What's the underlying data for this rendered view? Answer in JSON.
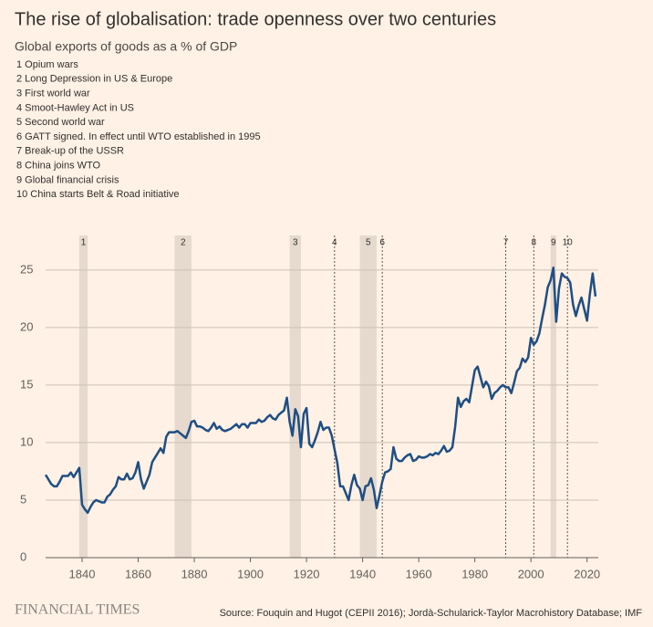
{
  "chart_data": {
    "type": "line",
    "title": "The rise of globalisation: trade openness over two centuries",
    "subtitle": "Global exports of goods as a % of GDP",
    "notes": [
      "1 Opium wars",
      "2 Long Depression in US & Europe",
      "3 First world war",
      "4 Smoot-Hawley Act in US",
      "5 Second world war",
      "6 GATT signed. In effect until WTO established in 1995",
      "7 Break-up of the USSR",
      "8 China joins WTO",
      "9 Global financial crisis",
      "10 China starts Belt & Road initiative"
    ],
    "events": [
      {
        "label": "1",
        "start": 1839,
        "end": 1842
      },
      {
        "label": "2",
        "start": 1873,
        "end": 1879
      },
      {
        "label": "3",
        "start": 1914,
        "end": 1918
      },
      {
        "label": "4",
        "year": 1930
      },
      {
        "label": "5",
        "start": 1939,
        "end": 1945
      },
      {
        "label": "6",
        "year": 1947
      },
      {
        "label": "7",
        "year": 1991
      },
      {
        "label": "8",
        "year": 2001
      },
      {
        "label": "9",
        "start": 2007,
        "end": 2009
      },
      {
        "label": "10",
        "year": 2013
      }
    ],
    "x": [
      1827,
      1828,
      1829,
      1830,
      1831,
      1832,
      1833,
      1834,
      1835,
      1836,
      1837,
      1838,
      1839,
      1840,
      1841,
      1842,
      1843,
      1844,
      1845,
      1846,
      1847,
      1848,
      1849,
      1850,
      1851,
      1852,
      1853,
      1854,
      1855,
      1856,
      1857,
      1858,
      1859,
      1860,
      1861,
      1862,
      1863,
      1864,
      1865,
      1866,
      1867,
      1868,
      1869,
      1870,
      1871,
      1872,
      1873,
      1874,
      1875,
      1876,
      1877,
      1878,
      1879,
      1880,
      1881,
      1882,
      1883,
      1884,
      1885,
      1886,
      1887,
      1888,
      1889,
      1890,
      1891,
      1892,
      1893,
      1894,
      1895,
      1896,
      1897,
      1898,
      1899,
      1900,
      1901,
      1902,
      1903,
      1904,
      1905,
      1906,
      1907,
      1908,
      1909,
      1910,
      1911,
      1912,
      1913,
      1914,
      1915,
      1916,
      1917,
      1918,
      1919,
      1920,
      1921,
      1922,
      1923,
      1924,
      1925,
      1926,
      1927,
      1928,
      1929,
      1930,
      1931,
      1932,
      1933,
      1934,
      1935,
      1936,
      1937,
      1938,
      1939,
      1940,
      1941,
      1942,
      1943,
      1944,
      1945,
      1946,
      1947,
      1948,
      1949,
      1950,
      1951,
      1952,
      1953,
      1954,
      1955,
      1956,
      1957,
      1958,
      1959,
      1960,
      1961,
      1962,
      1963,
      1964,
      1965,
      1966,
      1967,
      1968,
      1969,
      1970,
      1971,
      1972,
      1973,
      1974,
      1975,
      1976,
      1977,
      1978,
      1979,
      1980,
      1981,
      1982,
      1983,
      1984,
      1985,
      1986,
      1987,
      1988,
      1989,
      1990,
      1991,
      1992,
      1993,
      1994,
      1995,
      1996,
      1997,
      1998,
      1999,
      2000,
      2001,
      2002,
      2003,
      2004,
      2005,
      2006,
      2007,
      2008,
      2009,
      2010,
      2011,
      2012,
      2013,
      2014,
      2015,
      2016,
      2017,
      2018,
      2019,
      2020,
      2021,
      2022,
      2023
    ],
    "series": [
      {
        "name": "Global exports of goods",
        "color": "#1f4e82",
        "values": [
          7.2,
          6.8,
          6.4,
          6.2,
          6.2,
          6.6,
          7.1,
          7.1,
          7.1,
          7.4,
          7.0,
          7.4,
          7.8,
          4.6,
          4.2,
          3.9,
          4.4,
          4.8,
          5.0,
          4.9,
          4.8,
          4.8,
          5.3,
          5.5,
          5.9,
          6.2,
          7.0,
          6.8,
          6.8,
          7.3,
          6.8,
          6.9,
          7.4,
          8.3,
          6.8,
          6.0,
          6.6,
          7.2,
          8.3,
          8.7,
          9.1,
          9.5,
          9.1,
          10.5,
          10.9,
          10.9,
          10.9,
          11.0,
          10.8,
          10.6,
          10.4,
          11.0,
          11.8,
          11.9,
          11.4,
          11.4,
          11.3,
          11.1,
          11.0,
          11.3,
          11.7,
          11.2,
          11.4,
          11.1,
          11.0,
          11.1,
          11.2,
          11.4,
          11.6,
          11.3,
          11.6,
          11.6,
          11.3,
          11.7,
          11.7,
          11.7,
          12.0,
          11.8,
          11.9,
          12.2,
          12.4,
          12.1,
          12.0,
          12.4,
          12.6,
          12.8,
          13.9,
          11.8,
          10.6,
          12.9,
          12.3,
          9.6,
          12.5,
          13.0,
          9.9,
          9.6,
          10.2,
          10.9,
          11.8,
          11.1,
          11.3,
          11.3,
          10.6,
          9.4,
          8.2,
          6.2,
          6.2,
          5.6,
          5.0,
          6.3,
          7.2,
          6.3,
          6.0,
          5.0,
          6.2,
          6.3,
          6.9,
          5.9,
          4.3,
          5.4,
          6.6,
          7.4,
          7.5,
          7.7,
          9.6,
          8.6,
          8.4,
          8.4,
          8.7,
          8.9,
          9.0,
          8.4,
          8.5,
          8.8,
          8.7,
          8.7,
          8.8,
          9.0,
          8.9,
          9.1,
          9.0,
          9.3,
          9.7,
          9.2,
          9.3,
          9.6,
          11.4,
          13.9,
          13.1,
          13.6,
          13.8,
          13.5,
          14.9,
          16.3,
          16.6,
          15.7,
          14.8,
          15.3,
          14.9,
          13.8,
          14.3,
          14.5,
          14.8,
          15.0,
          14.8,
          14.8,
          14.3,
          15.2,
          16.2,
          16.5,
          17.3,
          17.0,
          17.4,
          19.1,
          18.5,
          18.8,
          19.5,
          20.8,
          22.0,
          23.5,
          24.1,
          25.2,
          20.5,
          23.4,
          24.7,
          24.4,
          24.3,
          23.9,
          22.0,
          21.0,
          21.9,
          22.6,
          21.6,
          20.6,
          22.9,
          24.7,
          22.7
        ]
      }
    ],
    "xlim": [
      1827,
      2024
    ],
    "ylim": [
      0,
      28
    ],
    "xticks": [
      1840,
      1860,
      1880,
      1900,
      1920,
      1940,
      1960,
      1980,
      2000,
      2020
    ],
    "yticks": [
      0,
      5,
      10,
      15,
      20,
      25
    ],
    "grid": true,
    "brand": "FINANCIAL TIMES",
    "source": "Source: Fouquin and Hugot (CEPII 2016); Jordà-Schularick-Taylor Macrohistory Database; IMF"
  }
}
